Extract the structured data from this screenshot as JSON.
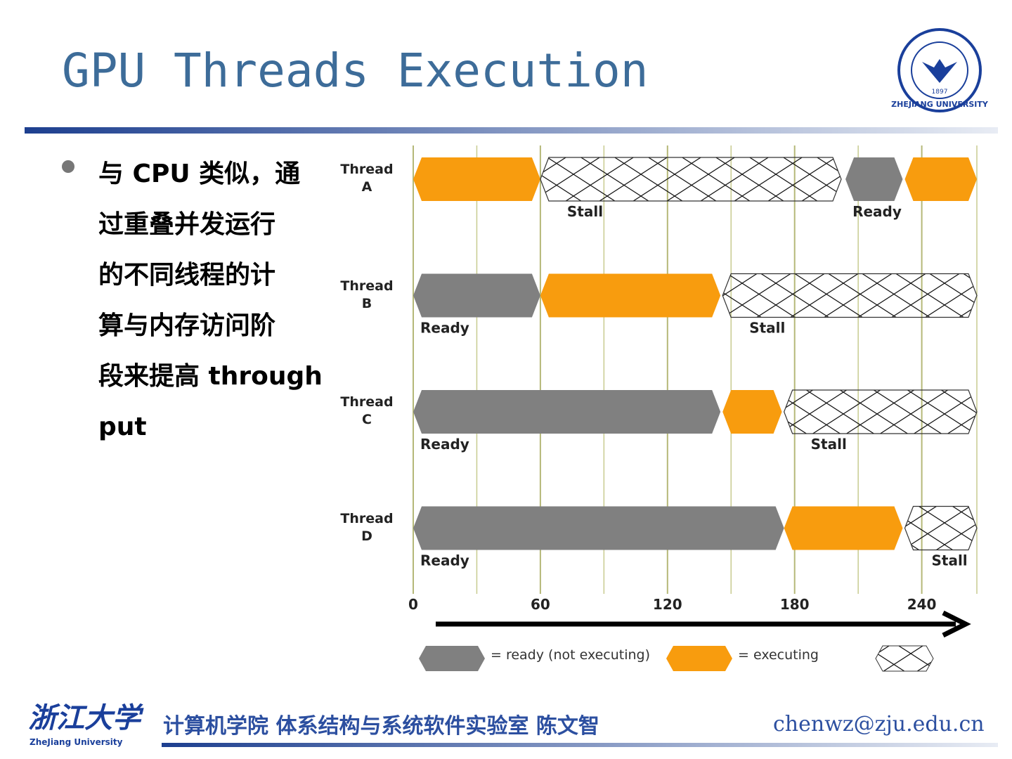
{
  "header": {
    "title": "GPU Threads Execution",
    "logo": {
      "year": "1897",
      "name": "ZHEJIANG UNIVERSITY"
    }
  },
  "bullet": {
    "lines": [
      "与 CPU 类似，通",
      "过重叠并发运行",
      "的不同线程的计",
      "算与内存访问阶",
      "段来提高 through",
      "put"
    ]
  },
  "chart_data": {
    "type": "timeline",
    "states": [
      {
        "name": "= ready (not executing)",
        "color": "#808080"
      },
      {
        "name": "= executing",
        "color": "#f89c0e"
      },
      {
        "color": "#ffffff",
        "pattern": "crosshatch"
      }
    ],
    "threads": [
      {
        "name": "Thread A",
        "segments": [
          {
            "state": 1,
            "start": 0,
            "end": 60
          },
          {
            "state": 2,
            "start": 60,
            "end": 202,
            "label": "Stall"
          },
          {
            "state": 0,
            "start": 204,
            "end": 231,
            "label": "Ready"
          },
          {
            "state": 1,
            "start": 232,
            "end": 266
          }
        ]
      },
      {
        "name": "Thread B",
        "segments": [
          {
            "state": 0,
            "start": 0,
            "end": 60,
            "label": "Ready"
          },
          {
            "state": 1,
            "start": 60,
            "end": 145
          },
          {
            "state": 2,
            "start": 146,
            "end": 266,
            "label": "Stall"
          }
        ]
      },
      {
        "name": "Thread C",
        "segments": [
          {
            "state": 0,
            "start": 0,
            "end": 145,
            "label": "Ready"
          },
          {
            "state": 1,
            "start": 146,
            "end": 174
          },
          {
            "state": 2,
            "start": 175,
            "end": 266,
            "label": "Stall"
          }
        ]
      },
      {
        "name": "Thread D",
        "segments": [
          {
            "state": 0,
            "start": 0,
            "end": 175,
            "label": "Ready"
          },
          {
            "state": 1,
            "start": 175,
            "end": 231
          },
          {
            "state": 2,
            "start": 232,
            "end": 266,
            "label": "Stall"
          }
        ]
      }
    ],
    "xlim": [
      0,
      266
    ],
    "xticks": [
      0,
      60,
      120,
      180,
      240
    ],
    "minor_xticks": [
      30,
      90,
      150,
      210,
      266
    ],
    "grid": true
  },
  "footer": {
    "logo_text": "浙江大学",
    "logo_sub": "ZheJiang University",
    "text": "计算机学院 体系结构与系统软件实验室 陈文智",
    "email": "chenwz@zju.edu.cn"
  }
}
